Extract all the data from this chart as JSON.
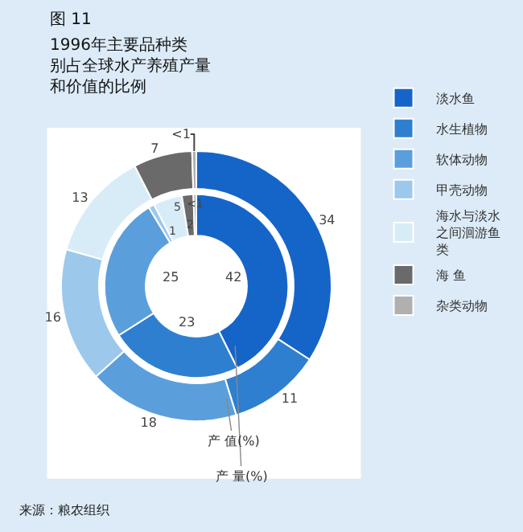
{
  "chart_data": {
    "type": "donut",
    "title": "图 11",
    "subtitle": "1996年主要品种类别占全球水产养殖产量和价值的比例",
    "categories": [
      "淡水鱼",
      "水生植物",
      "软体动物",
      "甲壳动物",
      "海水与淡水之间洄游鱼类",
      "海 鱼",
      "杂类动物"
    ],
    "colors": [
      "#1565c8",
      "#2f7fd0",
      "#5a9fdc",
      "#9cc8ec",
      "#d8ecf8",
      "#6a6a6a",
      "#b0b0b0"
    ],
    "series": [
      {
        "name": "产 量(%)",
        "values": [
          42,
          23,
          25,
          1,
          5,
          2,
          0.5
        ],
        "value_labels": [
          "42",
          "23",
          "25",
          "1",
          "5",
          "2",
          "<1"
        ]
      },
      {
        "name": "产 值(%)",
        "values": [
          34,
          11,
          18,
          16,
          13,
          7,
          0.5
        ],
        "value_labels": [
          "34",
          "11",
          "18",
          "16",
          "13",
          "7",
          "<1"
        ]
      }
    ],
    "legend": "right",
    "annotations": [
      "来源：粮农组织"
    ]
  }
}
